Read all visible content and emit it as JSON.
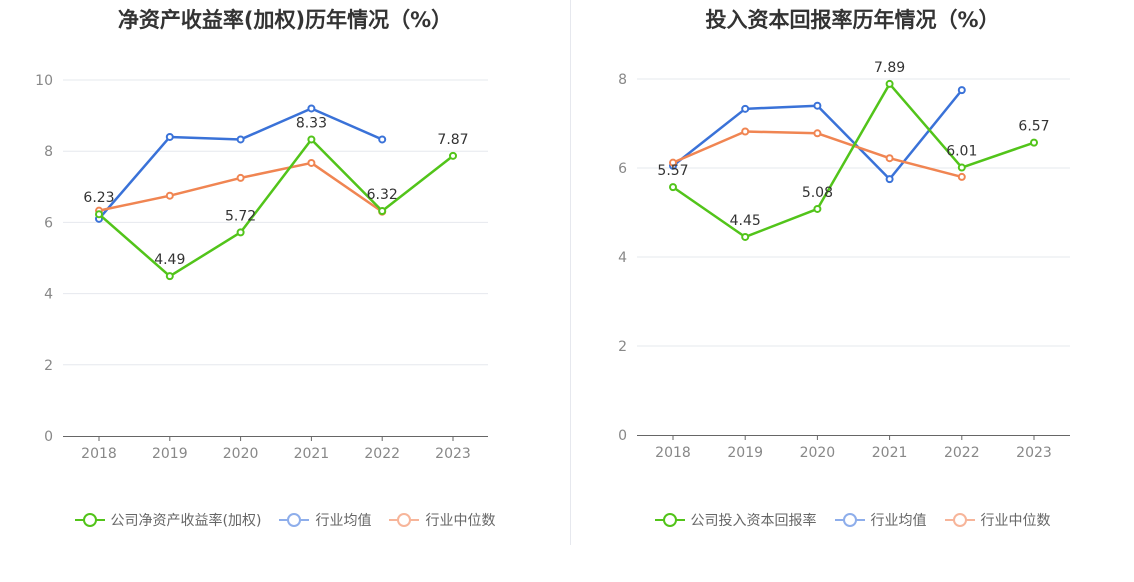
{
  "colors": {
    "company": "#52c41a",
    "avg": "#3a72d8",
    "median": "#f08552",
    "legend_avg": "#8eaeeb",
    "legend_median": "#f7b59a"
  },
  "chart_data": [
    {
      "type": "line",
      "title": "净资产收益率(加权)历年情况（%）",
      "x": [
        "2018",
        "2019",
        "2020",
        "2021",
        "2022",
        "2023"
      ],
      "ylim": [
        0,
        10
      ],
      "yticks": [
        "0",
        "2",
        "4",
        "6",
        "8",
        "10"
      ],
      "legend": "bottom",
      "series": [
        {
          "name": "公司净资产收益率(加权)",
          "key": "company",
          "labeled": true,
          "values": [
            6.23,
            4.49,
            5.72,
            8.33,
            6.32,
            7.87
          ],
          "labels": [
            "6.23",
            "4.49",
            "5.72",
            "8.33",
            "6.32",
            "7.87"
          ]
        },
        {
          "name": "行业均值",
          "key": "avg",
          "labeled": false,
          "values": [
            6.1,
            8.4,
            8.33,
            9.2,
            8.33,
            null
          ]
        },
        {
          "name": "行业中位数",
          "key": "median",
          "labeled": false,
          "values": [
            6.33,
            6.75,
            7.25,
            7.67,
            6.3,
            null
          ]
        }
      ]
    },
    {
      "type": "line",
      "title": "投入资本回报率历年情况（%）",
      "x": [
        "2018",
        "2019",
        "2020",
        "2021",
        "2022",
        "2023"
      ],
      "ylim": [
        0,
        8
      ],
      "yticks": [
        "0",
        "2",
        "4",
        "6",
        "8"
      ],
      "legend": "bottom",
      "series": [
        {
          "name": "公司投入资本回报率",
          "key": "company",
          "labeled": true,
          "values": [
            5.57,
            4.45,
            5.08,
            7.89,
            6.01,
            6.57
          ],
          "labels": [
            "5.57",
            "4.45",
            "5.08",
            "7.89",
            "6.01",
            "6.57"
          ]
        },
        {
          "name": "行业均值",
          "key": "avg",
          "labeled": false,
          "values": [
            6.05,
            7.33,
            7.4,
            5.75,
            7.75,
            null
          ]
        },
        {
          "name": "行业中位数",
          "key": "median",
          "labeled": false,
          "values": [
            6.12,
            6.82,
            6.78,
            6.22,
            5.8,
            null
          ]
        }
      ]
    }
  ]
}
